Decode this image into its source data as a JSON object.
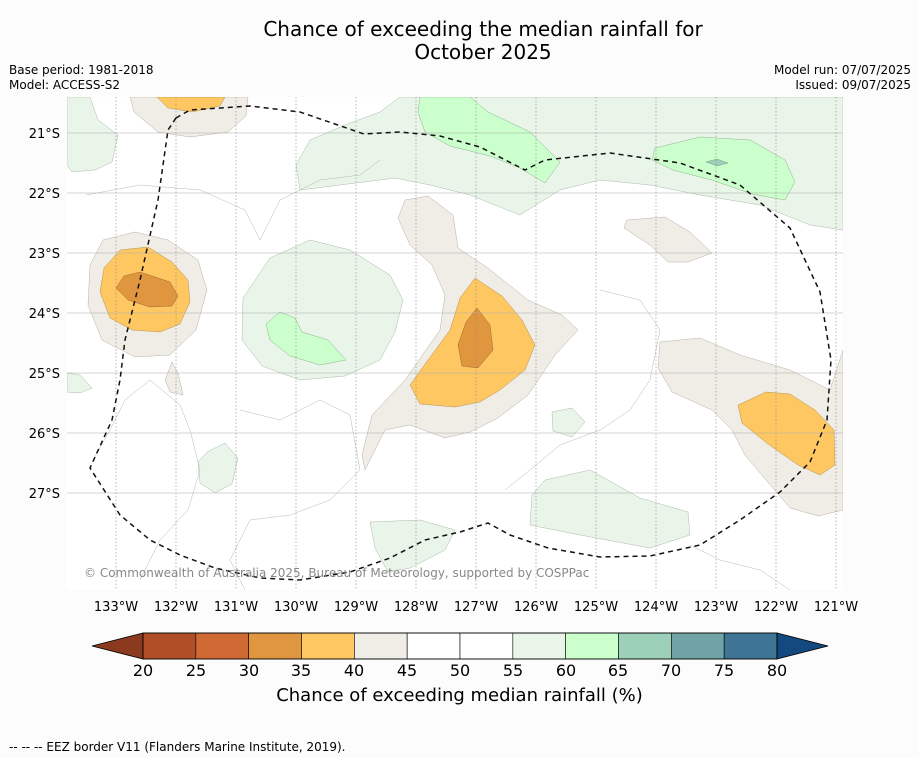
{
  "title_line1": "Chance of exceeding the median rainfall for",
  "title_line2": "October 2025",
  "base_period": "Base period: 1981-2018",
  "model": "Model: ACCESS-S2",
  "model_run": "Model run: 07/07/2025",
  "issued": "Issued: 09/07/2025",
  "copyright": "© Commonwealth of Australia 2025, Bureau of Meteorology, supported by COSPPac",
  "lat_labels": [
    "21°S",
    "22°S",
    "23°S",
    "24°S",
    "25°S",
    "26°S",
    "27°S"
  ],
  "lon_labels": [
    "133°W",
    "132°W",
    "131°W",
    "130°W",
    "129°W",
    "128°W",
    "127°W",
    "126°W",
    "125°W",
    "124°W",
    "123°W",
    "122°W",
    "121°W"
  ],
  "colorbar": {
    "label": "Chance of exceeding median rainfall (%)",
    "ticks": [
      "20",
      "25",
      "30",
      "35",
      "40",
      "45",
      "50",
      "55",
      "60",
      "65",
      "70",
      "75",
      "80"
    ],
    "colors": [
      "#8b3a1f",
      "#b04e28",
      "#cf6a35",
      "#e0953f",
      "#fec762",
      "#f0ede7",
      "#ffffff",
      "#ffffff",
      "#e9f5e8",
      "#cbffcb",
      "#9dd0b8",
      "#6fa3a5",
      "#3e7594",
      "#14497f"
    ]
  },
  "footer": "--  --  -- EEZ border V11 (Flanders Marine Institute, 2019)."
}
